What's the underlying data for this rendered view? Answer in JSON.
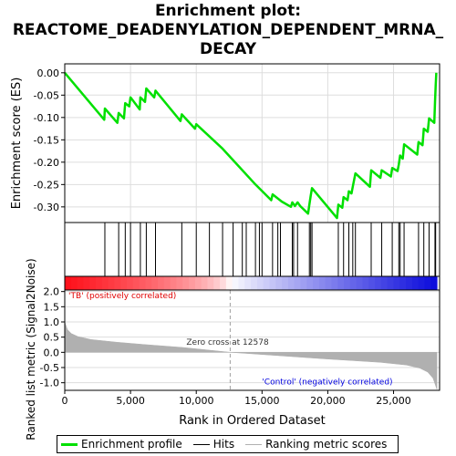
{
  "title_line1": "Enrichment plot:",
  "title_line2": "REACTOME_DEADENYLATION_DEPENDENT_MRNA_",
  "title_line3": "DECAY",
  "chart_data": {
    "type": "line",
    "es_panel": {
      "ylabel": "Enrichment score (ES)",
      "yticks": [
        "0.00",
        "-0.05",
        "-0.10",
        "-0.15",
        "-0.20",
        "-0.25",
        "-0.30"
      ],
      "ylim": [
        -0.335,
        0.02
      ],
      "series_name": "Enrichment profile",
      "x": [
        0,
        3000,
        3050,
        4000,
        4100,
        4500,
        4600,
        4900,
        5000,
        5700,
        5750,
        6100,
        6200,
        6800,
        6900,
        8800,
        8900,
        9900,
        10000,
        12000,
        14500,
        15700,
        15800,
        16500,
        17200,
        17300,
        17500,
        17700,
        17900,
        18500,
        18600,
        18700,
        18800,
        20700,
        20800,
        21100,
        21200,
        21500,
        21600,
        21800,
        21900,
        22100,
        23200,
        23300,
        24000,
        24100,
        24800,
        24900,
        25300,
        25400,
        25500,
        25700,
        25800,
        26800,
        26900,
        27200,
        27300,
        27600,
        27700,
        28100,
        28150,
        28200,
        28250
      ],
      "y": [
        0.0,
        -0.105,
        -0.08,
        -0.112,
        -0.09,
        -0.102,
        -0.068,
        -0.075,
        -0.055,
        -0.082,
        -0.055,
        -0.065,
        -0.035,
        -0.055,
        -0.04,
        -0.108,
        -0.093,
        -0.125,
        -0.115,
        -0.17,
        -0.25,
        -0.285,
        -0.272,
        -0.288,
        -0.3,
        -0.29,
        -0.298,
        -0.29,
        -0.298,
        -0.315,
        -0.295,
        -0.275,
        -0.258,
        -0.325,
        -0.295,
        -0.302,
        -0.278,
        -0.285,
        -0.265,
        -0.27,
        -0.255,
        -0.225,
        -0.255,
        -0.218,
        -0.235,
        -0.218,
        -0.232,
        -0.213,
        -0.22,
        -0.205,
        -0.185,
        -0.192,
        -0.16,
        -0.183,
        -0.155,
        -0.162,
        -0.125,
        -0.132,
        -0.102,
        -0.112,
        -0.065,
        -0.03,
        0.0
      ]
    },
    "hits": {
      "legend_label": "Hits",
      "positions": [
        3050,
        4100,
        4600,
        5000,
        5750,
        6200,
        6900,
        8900,
        10000,
        11000,
        12000,
        12800,
        13500,
        13800,
        14500,
        14800,
        15000,
        15800,
        16200,
        16400,
        17300,
        17400,
        17700,
        18600,
        18700,
        18800,
        20800,
        21200,
        21600,
        21900,
        22100,
        23300,
        24100,
        24900,
        25400,
        25500,
        25800,
        26900,
        27300,
        27700,
        28150,
        28200
      ]
    },
    "rank_panel": {
      "ylabel": "Ranked list metric (Signal2Noise)",
      "xlabel": "Rank in Ordered Dataset",
      "yticks": [
        "2.0",
        "1.5",
        "1.0",
        "0.5",
        "0.0",
        "-0.5",
        "-1.0"
      ],
      "ylim": [
        -1.25,
        2.05
      ],
      "xticks": [
        "0",
        "5,000",
        "10,000",
        "15,000",
        "20,000",
        "25,000"
      ],
      "xlim": [
        0,
        28500
      ],
      "zero_cross_text": "Zero cross at 12578",
      "zero_cross_x": 12578,
      "pos_label": "'TB' (positively correlated)",
      "neg_label": "'Control' (negatively correlated)",
      "legend_label": "Ranking metric scores",
      "metric_x": [
        0,
        200,
        500,
        1000,
        2000,
        4000,
        6000,
        9000,
        12578,
        16000,
        20000,
        24000,
        26000,
        27000,
        27600,
        28000,
        28200,
        28300
      ],
      "metric_y": [
        1.0,
        0.75,
        0.62,
        0.52,
        0.42,
        0.33,
        0.26,
        0.16,
        0.0,
        -0.1,
        -0.22,
        -0.33,
        -0.42,
        -0.52,
        -0.65,
        -0.85,
        -1.1,
        -1.22
      ]
    },
    "colors": {
      "profile": "#00e000",
      "hits": "#000000",
      "metric_fill": "#b0b0b0",
      "pos_text": "#e00000",
      "neg_text": "#0000e0",
      "zero_line": "#a0a0a0"
    }
  }
}
